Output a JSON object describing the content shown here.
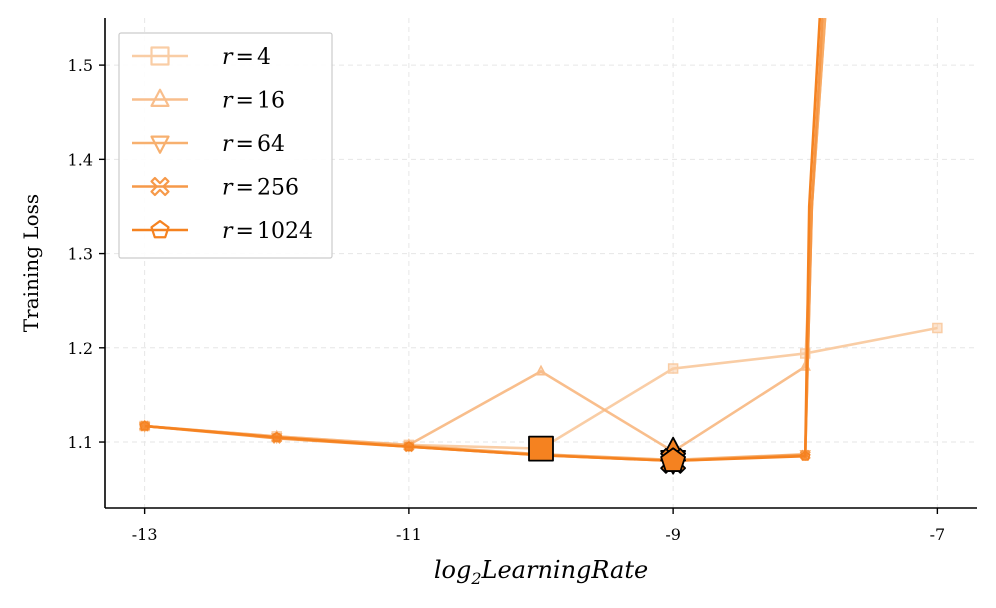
{
  "chart_data": {
    "type": "line",
    "xlabel": "log",
    "xlabel_sub": "2",
    "xlabel_rest": "LearningRate",
    "ylabel": "Training Loss",
    "xlim": [
      -13.3,
      -6.7
    ],
    "ylim": [
      1.03,
      1.55
    ],
    "x_ticks": [
      -13,
      -11,
      -9,
      -7
    ],
    "x_tick_labels": [
      "-13",
      "-11",
      "-9",
      "-7"
    ],
    "y_ticks": [
      1.1,
      1.2,
      1.3,
      1.4,
      1.5
    ],
    "y_tick_labels": [
      "1.1",
      "1.2",
      "1.3",
      "1.4",
      "1.5"
    ],
    "grid": true,
    "legend_position": "top-left",
    "series": [
      {
        "name": "r=4",
        "marker": "square",
        "color": "#f9c89c",
        "opacity": 0.9,
        "x": [
          -13,
          -12,
          -11,
          -10,
          -9,
          -8,
          -7
        ],
        "y": [
          1.117,
          1.106,
          1.097,
          1.093,
          1.178,
          1.194,
          1.221
        ]
      },
      {
        "name": "r=16",
        "marker": "triangle-up",
        "color": "#f8b780",
        "opacity": 0.9,
        "x": [
          -13,
          -12,
          -11,
          -10,
          -9,
          -8,
          -7.95,
          -7.85
        ],
        "y": [
          1.117,
          1.106,
          1.097,
          1.175,
          1.09,
          1.18,
          1.35,
          1.55
        ]
      },
      {
        "name": "r=64",
        "marker": "triangle-down",
        "color": "#f7a860",
        "opacity": 0.9,
        "x": [
          -13,
          -12,
          -11,
          -10,
          -9,
          -8,
          -7.95,
          -7.85
        ],
        "y": [
          1.117,
          1.105,
          1.096,
          1.087,
          1.081,
          1.087,
          1.35,
          1.55
        ]
      },
      {
        "name": "r=256",
        "marker": "x-thick",
        "color": "#f69440",
        "opacity": 0.95,
        "x": [
          -13,
          -12,
          -11,
          -10,
          -9,
          -8,
          -7.95,
          -7.87
        ],
        "y": [
          1.117,
          1.104,
          1.095,
          1.086,
          1.08,
          1.086,
          1.35,
          1.55
        ]
      },
      {
        "name": "r=1024",
        "marker": "pentagon",
        "color": "#f58220",
        "opacity": 1.0,
        "x": [
          -13,
          -12,
          -11,
          -10,
          -9,
          -8,
          -7.97,
          -7.89
        ],
        "y": [
          1.117,
          1.105,
          1.095,
          1.086,
          1.08,
          1.085,
          1.35,
          1.55
        ]
      }
    ],
    "highlights": [
      {
        "x": -10,
        "y": 1.093,
        "marker": "square",
        "color": "#f58220"
      },
      {
        "x": -9,
        "y": 1.09,
        "marker": "triangle-up",
        "color": "#f58220"
      },
      {
        "x": -9,
        "y": 1.081,
        "marker": "triangle-down",
        "color": "#f58220"
      },
      {
        "x": -9,
        "y": 1.08,
        "marker": "x-thick",
        "color": "#f58220"
      },
      {
        "x": -9,
        "y": 1.08,
        "marker": "pentagon",
        "color": "#f58220"
      }
    ],
    "legend": [
      {
        "prefix": "r",
        "eq": "=",
        "value": "4"
      },
      {
        "prefix": "r",
        "eq": "=",
        "value": "16"
      },
      {
        "prefix": "r",
        "eq": "=",
        "value": "64"
      },
      {
        "prefix": "r",
        "eq": "=",
        "value": "256"
      },
      {
        "prefix": "r",
        "eq": "=",
        "value": "1024"
      }
    ]
  }
}
